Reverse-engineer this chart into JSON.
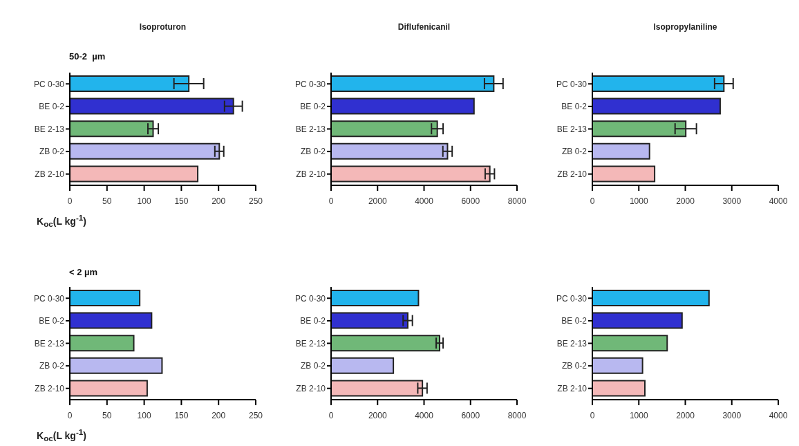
{
  "chart_data": [
    {
      "type": "bar",
      "orientation": "horizontal",
      "title": "Isoproturon",
      "subtitle": "50-2  µm",
      "xlabel": "K$_{oc}$(L kg$^{-1}$)",
      "categories": [
        "PC 0-30",
        "BE 0-2",
        "BE 2-13",
        "ZB 0-2",
        "ZB 2-10"
      ],
      "colors": [
        "#22b4ec",
        "#3030d0",
        "#70b878",
        "#b8b8f0",
        "#f4b8b8"
      ],
      "values": [
        160,
        220,
        112,
        201,
        172
      ],
      "errors": [
        20,
        12,
        7,
        6,
        null
      ],
      "xlim": [
        0,
        250
      ],
      "xticks": [
        0,
        50,
        100,
        150,
        200,
        250
      ]
    },
    {
      "type": "bar",
      "orientation": "horizontal",
      "title": "Diflufenicanil",
      "categories": [
        "PC 0-30",
        "BE 0-2",
        "BE 2-13",
        "ZB 0-2",
        "ZB 2-10"
      ],
      "colors": [
        "#22b4ec",
        "#3030d0",
        "#70b878",
        "#b8b8f0",
        "#f4b8b8"
      ],
      "values": [
        7000,
        6150,
        4570,
        5010,
        6830
      ],
      "errors": [
        400,
        null,
        250,
        200,
        200
      ],
      "xlim": [
        0,
        8000
      ],
      "xticks": [
        0,
        2000,
        4000,
        6000,
        8000
      ]
    },
    {
      "type": "bar",
      "orientation": "horizontal",
      "title": "Isopropylaniline",
      "categories": [
        "PC 0-30",
        "BE 0-2",
        "BE 2-13",
        "ZB 0-2",
        "ZB 2-10"
      ],
      "colors": [
        "#22b4ec",
        "#3030d0",
        "#70b878",
        "#b8b8f0",
        "#f4b8b8"
      ],
      "values": [
        2830,
        2750,
        2010,
        1230,
        1340
      ],
      "errors": [
        200,
        null,
        230,
        null,
        null
      ],
      "xlim": [
        0,
        4000
      ],
      "xticks": [
        0,
        1000,
        2000,
        3000,
        4000
      ]
    },
    {
      "type": "bar",
      "orientation": "horizontal",
      "subtitle": "< 2 µm",
      "xlabel": "K$_{oc}$(L kg$^{-1}$)",
      "categories": [
        "PC 0-30",
        "BE 0-2",
        "BE 2-13",
        "ZB 0-2",
        "ZB 2-10"
      ],
      "colors": [
        "#22b4ec",
        "#3030d0",
        "#70b878",
        "#b8b8f0",
        "#f4b8b8"
      ],
      "values": [
        94,
        110,
        86,
        124,
        104
      ],
      "xlim": [
        0,
        250
      ],
      "xticks": [
        0,
        50,
        100,
        150,
        200,
        250
      ]
    },
    {
      "type": "bar",
      "orientation": "horizontal",
      "categories": [
        "PC 0-30",
        "BE 0-2",
        "BE 2-13",
        "ZB 0-2",
        "ZB 2-10"
      ],
      "colors": [
        "#22b4ec",
        "#3030d0",
        "#70b878",
        "#b8b8f0",
        "#f4b8b8"
      ],
      "values": [
        3760,
        3300,
        4670,
        2680,
        3930
      ],
      "errors": [
        null,
        200,
        150,
        null,
        200
      ],
      "xlim": [
        0,
        8000
      ],
      "xticks": [
        0,
        2000,
        4000,
        6000,
        8000
      ]
    },
    {
      "type": "bar",
      "orientation": "horizontal",
      "categories": [
        "PC 0-30",
        "BE 0-2",
        "BE 2-13",
        "ZB 0-2",
        "ZB 2-10"
      ],
      "colors": [
        "#22b4ec",
        "#3030d0",
        "#70b878",
        "#b8b8f0",
        "#f4b8b8"
      ],
      "values": [
        2510,
        1930,
        1610,
        1080,
        1130
      ],
      "xlim": [
        0,
        4000
      ],
      "xticks": [
        0,
        1000,
        2000,
        3000,
        4000
      ]
    }
  ]
}
